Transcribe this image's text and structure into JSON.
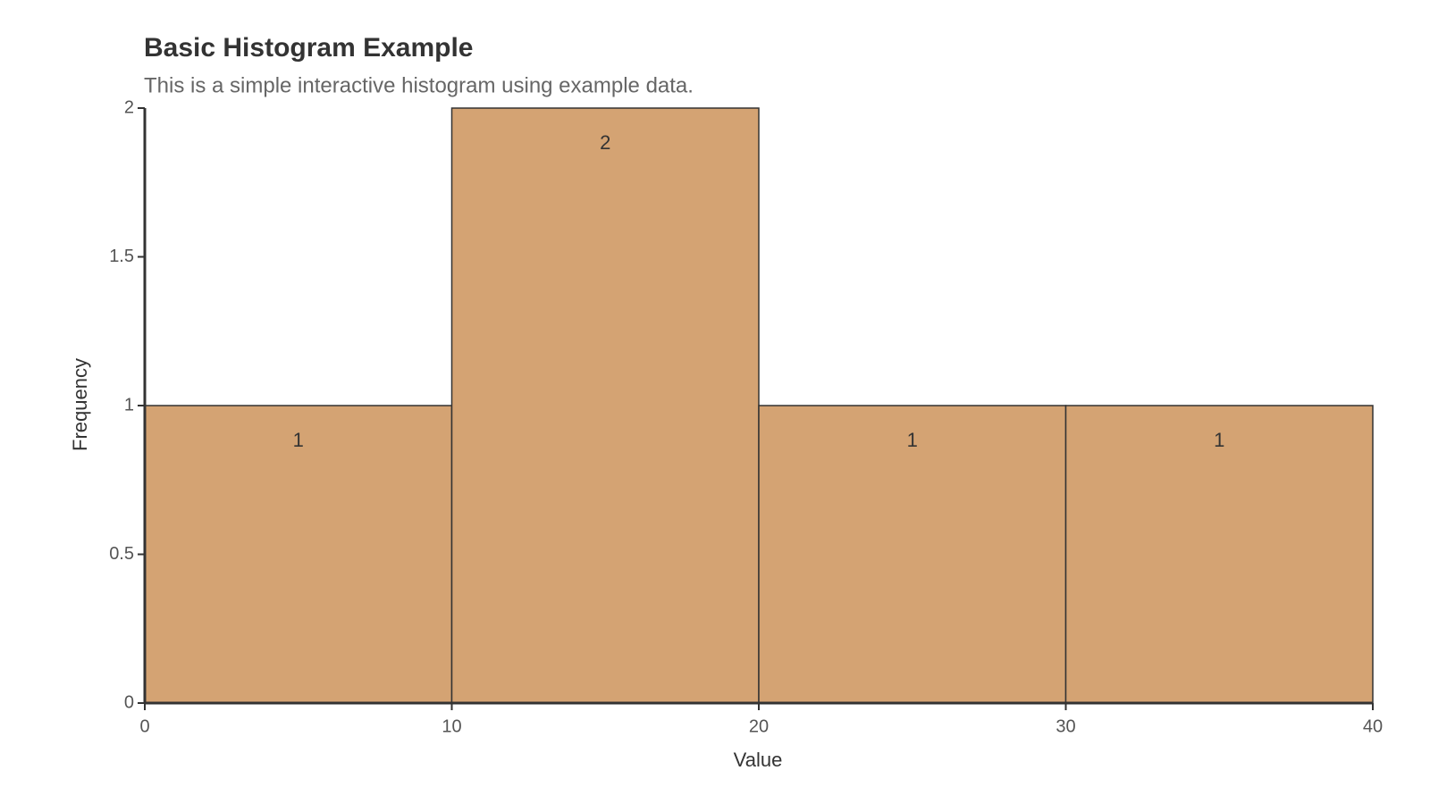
{
  "chart_data": {
    "type": "histogram",
    "title": "Basic Histogram Example",
    "subtitle": "This is a simple interactive histogram using example data.",
    "x_label": "Value",
    "y_label": "Frequency",
    "bins": [
      0,
      10,
      20,
      30,
      40
    ],
    "counts": [
      1,
      2,
      1,
      1
    ],
    "color": "#d4a373",
    "xlim": [
      0,
      40
    ],
    "xticks": [
      0,
      10,
      20,
      30,
      40
    ],
    "ylim": [
      0,
      2
    ],
    "yticks": [
      0,
      0.5,
      1,
      1.5,
      2
    ]
  }
}
